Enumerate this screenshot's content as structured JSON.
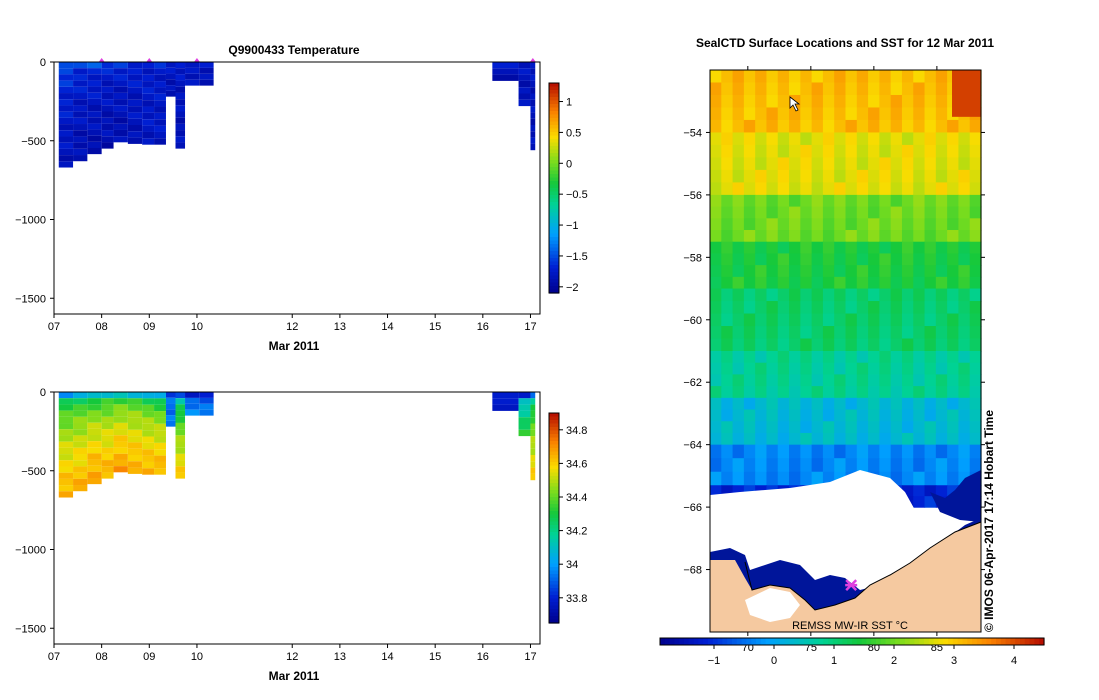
{
  "chart_data": [
    {
      "id": "temperature_section",
      "type": "heatmap",
      "title": "Q9900433  Temperature",
      "xlabel": "Mar 2011",
      "x_ticks": [
        "07",
        "08",
        "09",
        "10",
        "12",
        "13",
        "14",
        "15",
        "16",
        "17"
      ],
      "x_tick_values": [
        7,
        8,
        9,
        10,
        12,
        13,
        14,
        15,
        16,
        17
      ],
      "xlim": [
        7,
        17.2
      ],
      "y_ticks": [
        "0",
        "−500",
        "−1000",
        "−1500"
      ],
      "y_tick_values": [
        0,
        -500,
        -1000,
        -1500
      ],
      "ylim": [
        -1600,
        0
      ],
      "colorbar": {
        "ticks": [
          "1",
          "0.5",
          "0",
          "−0.5",
          "−1",
          "−1.5",
          "−2"
        ],
        "tick_values": [
          1,
          0.5,
          0,
          -0.5,
          -1,
          -1.5,
          -2
        ],
        "range": [
          -2.1,
          1.3
        ]
      },
      "profile_markers_x": [
        8,
        9,
        10,
        17.05
      ],
      "profiles": [
        {
          "x0": 7.1,
          "x1": 7.4,
          "depth": 670,
          "surface": -1.4,
          "deep": -1.85
        },
        {
          "x0": 7.4,
          "x1": 7.7,
          "depth": 630,
          "surface": -1.5,
          "deep": -1.9
        },
        {
          "x0": 7.7,
          "x1": 8.0,
          "depth": 585,
          "surface": -1.5,
          "deep": -1.9
        },
        {
          "x0": 8.0,
          "x1": 8.25,
          "depth": 550,
          "surface": -1.6,
          "deep": -1.9
        },
        {
          "x0": 8.25,
          "x1": 8.55,
          "depth": 510,
          "surface": -1.6,
          "deep": -1.9
        },
        {
          "x0": 8.55,
          "x1": 8.85,
          "depth": 520,
          "surface": -1.65,
          "deep": -1.85
        },
        {
          "x0": 8.85,
          "x1": 9.1,
          "depth": 525,
          "surface": -1.7,
          "deep": -1.8
        },
        {
          "x0": 9.1,
          "x1": 9.35,
          "depth": 525,
          "surface": -1.7,
          "deep": -1.8
        },
        {
          "x0": 9.35,
          "x1": 9.55,
          "depth": 220,
          "surface": -1.75,
          "deep": -1.85
        },
        {
          "x0": 9.55,
          "x1": 9.75,
          "depth": 550,
          "surface": -1.75,
          "deep": -1.85
        },
        {
          "x0": 9.75,
          "x1": 10.05,
          "depth": 150,
          "surface": -1.7,
          "deep": -1.85
        },
        {
          "x0": 10.05,
          "x1": 10.35,
          "depth": 150,
          "surface": -1.7,
          "deep": -1.85
        },
        {
          "x0": 16.2,
          "x1": 16.75,
          "depth": 120,
          "surface": -1.8,
          "deep": -1.85
        },
        {
          "x0": 16.75,
          "x1": 17.0,
          "depth": 280,
          "surface": -1.8,
          "deep": -1.85
        },
        {
          "x0": 17.0,
          "x1": 17.1,
          "depth": 560,
          "surface": -1.8,
          "deep": -1.85
        }
      ]
    },
    {
      "id": "salinity_section",
      "type": "heatmap",
      "title": "",
      "xlabel": "Mar 2011",
      "x_ticks": [
        "07",
        "08",
        "09",
        "10",
        "12",
        "13",
        "14",
        "15",
        "16",
        "17"
      ],
      "x_tick_values": [
        7,
        8,
        9,
        10,
        12,
        13,
        14,
        15,
        16,
        17
      ],
      "xlim": [
        7,
        17.2
      ],
      "y_ticks": [
        "0",
        "−500",
        "−1000",
        "−1500"
      ],
      "y_tick_values": [
        0,
        -500,
        -1000,
        -1500
      ],
      "ylim": [
        -1600,
        0
      ],
      "colorbar": {
        "ticks": [
          "34.8",
          "34.6",
          "34.4",
          "34.2",
          "34",
          "33.8"
        ],
        "tick_values": [
          34.8,
          34.6,
          34.4,
          34.2,
          34.0,
          33.8
        ],
        "range": [
          33.65,
          34.9
        ]
      },
      "profiles": [
        {
          "x0": 7.1,
          "x1": 7.4,
          "depth": 670,
          "surface": 34.0,
          "deep": 34.65
        },
        {
          "x0": 7.4,
          "x1": 7.7,
          "depth": 630,
          "surface": 34.05,
          "deep": 34.65
        },
        {
          "x0": 7.7,
          "x1": 8.0,
          "depth": 585,
          "surface": 34.05,
          "deep": 34.68
        },
        {
          "x0": 8.0,
          "x1": 8.25,
          "depth": 550,
          "surface": 34.1,
          "deep": 34.65
        },
        {
          "x0": 8.25,
          "x1": 8.55,
          "depth": 510,
          "surface": 34.1,
          "deep": 34.68
        },
        {
          "x0": 8.55,
          "x1": 8.85,
          "depth": 520,
          "surface": 34.1,
          "deep": 34.66
        },
        {
          "x0": 8.85,
          "x1": 9.1,
          "depth": 525,
          "surface": 34.05,
          "deep": 34.65
        },
        {
          "x0": 9.1,
          "x1": 9.35,
          "depth": 525,
          "surface": 34.0,
          "deep": 34.65
        },
        {
          "x0": 9.35,
          "x1": 9.55,
          "depth": 220,
          "surface": 33.85,
          "deep": 33.95
        },
        {
          "x0": 9.55,
          "x1": 9.75,
          "depth": 550,
          "surface": 33.85,
          "deep": 34.6
        },
        {
          "x0": 9.75,
          "x1": 10.05,
          "depth": 150,
          "surface": 33.8,
          "deep": 33.95
        },
        {
          "x0": 10.05,
          "x1": 10.35,
          "depth": 150,
          "surface": 33.8,
          "deep": 33.95
        },
        {
          "x0": 16.2,
          "x1": 16.75,
          "depth": 120,
          "surface": 33.75,
          "deep": 33.8
        },
        {
          "x0": 16.75,
          "x1": 17.0,
          "depth": 280,
          "surface": 33.8,
          "deep": 34.3
        },
        {
          "x0": 17.0,
          "x1": 17.1,
          "depth": 560,
          "surface": 33.9,
          "deep": 34.6
        }
      ]
    },
    {
      "id": "sst_map",
      "type": "heatmap",
      "title": "SealCTD Surface Locations and SST for 12 Mar 2011",
      "y_ticks": [
        "−54",
        "−56",
        "−58",
        "−60",
        "−62",
        "−64",
        "−66",
        "−68"
      ],
      "y_tick_values": [
        -54,
        -56,
        -58,
        -60,
        -62,
        -64,
        -66,
        -68
      ],
      "ylim": [
        -70.0,
        -52.0
      ],
      "x_ticks": [
        "70",
        "75",
        "80",
        "85"
      ],
      "x_tick_values": [
        70,
        75,
        80,
        85
      ],
      "xlim": [
        67.0,
        88.5
      ],
      "colorbar": {
        "ticks": [
          "−1",
          "0",
          "1",
          "2",
          "3",
          "4"
        ],
        "tick_values": [
          -1,
          0,
          1,
          2,
          3,
          4
        ],
        "range": [
          -1.9,
          4.5
        ]
      },
      "source_label": "REMSS MW-IR SST °C",
      "credit": "© IMOS 06-Apr-2017 17:14 Hobart Time",
      "sst_bands": [
        {
          "lat_top": -52.0,
          "lat_bottom": -54.0,
          "value": 3.1
        },
        {
          "lat_top": -54.0,
          "lat_bottom": -56.0,
          "value": 2.7
        },
        {
          "lat_top": -56.0,
          "lat_bottom": -57.5,
          "value": 2.0
        },
        {
          "lat_top": -57.5,
          "lat_bottom": -59.0,
          "value": 1.45
        },
        {
          "lat_top": -59.0,
          "lat_bottom": -61.0,
          "value": 1.1
        },
        {
          "lat_top": -61.0,
          "lat_bottom": -62.5,
          "value": 0.8
        },
        {
          "lat_top": -62.5,
          "lat_bottom": -64.0,
          "value": 0.3
        },
        {
          "lat_top": -64.0,
          "lat_bottom": -65.3,
          "value": -0.3
        },
        {
          "lat_top": -65.3,
          "lat_bottom": -66.0,
          "value": -1.1
        }
      ],
      "warm_patch": {
        "lon0": 86.2,
        "lon1": 88.5,
        "lat_top": -52.0,
        "lat_bottom": -53.5,
        "value": 4.1
      },
      "seal_location": {
        "lon": 78.2,
        "lat": -68.5
      },
      "colors": {
        "land": "#f5c9a0",
        "ice": "#ffffff",
        "coast_sea": "#00159a",
        "marker": "#e040e0"
      }
    }
  ]
}
